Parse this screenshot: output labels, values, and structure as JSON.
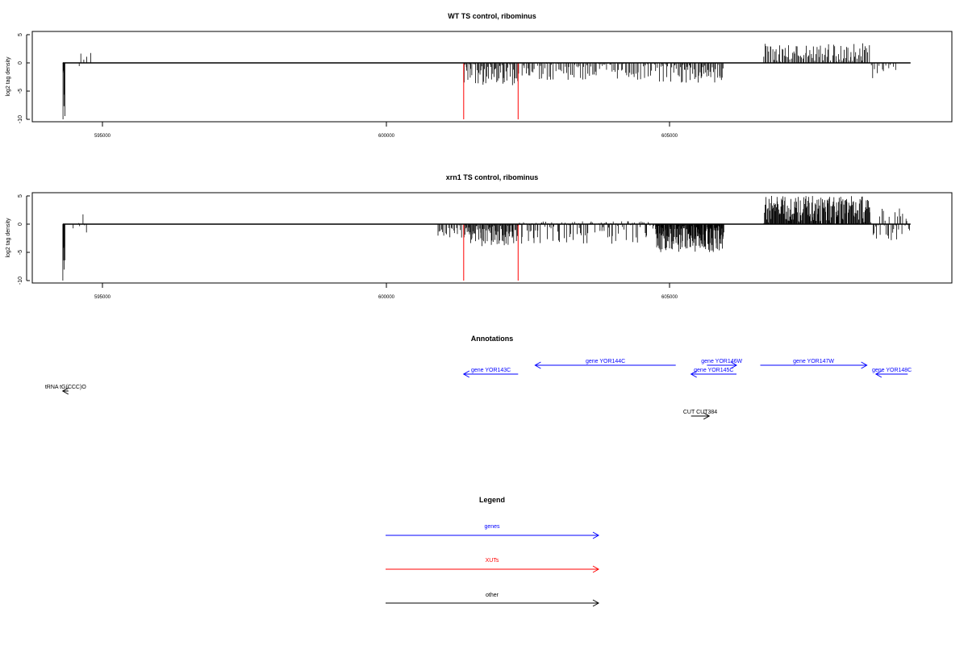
{
  "chart_data": [
    {
      "type": "bar",
      "title": "WT TS control, ribominus",
      "ylabel": "log2 tag density",
      "xlim": [
        594000,
        610000
      ],
      "ylim": [
        -10,
        5
      ],
      "xticks": [
        {
          "value": 595000,
          "label": "595000"
        },
        {
          "value": 600000,
          "label": "600000"
        },
        {
          "value": 605000,
          "label": "605000"
        }
      ],
      "yticks": [
        {
          "value": 5,
          "label": "5"
        },
        {
          "value": 0,
          "label": "0"
        },
        {
          "value": -5,
          "label": "-5"
        },
        {
          "value": -10,
          "label": "-10"
        }
      ],
      "baseline": {
        "start": 594300,
        "end": 609250
      },
      "xut_lines": [
        {
          "x": 601370,
          "value": -10
        },
        {
          "x": 602330,
          "value": -10
        }
      ],
      "signal_spans": [
        {
          "start": 594300,
          "end": 594340,
          "min": -10,
          "max": 0,
          "count": 6,
          "seed": 11
        },
        {
          "start": 594560,
          "end": 594820,
          "min": -2.5,
          "max": 2.5,
          "count": 5,
          "seed": 12
        },
        {
          "start": 601370,
          "end": 602330,
          "min": -4,
          "max": 0,
          "count": 55,
          "seed": 13
        },
        {
          "start": 602330,
          "end": 604750,
          "min": -3,
          "max": 0,
          "count": 95,
          "seed": 14
        },
        {
          "start": 604750,
          "end": 605960,
          "min": -3.5,
          "max": 0,
          "count": 70,
          "seed": 15
        },
        {
          "start": 606660,
          "end": 608530,
          "min": 0,
          "max": 3.5,
          "count": 90,
          "seed": 16
        },
        {
          "start": 608530,
          "end": 609000,
          "min": -3,
          "max": -0.3,
          "count": 12,
          "seed": 17
        }
      ]
    },
    {
      "type": "bar",
      "title": "xrn1 TS control, ribominus",
      "ylabel": "log2 tag density",
      "xlim": [
        594000,
        610000
      ],
      "ylim": [
        -10,
        5
      ],
      "xticks": [
        {
          "value": 595000,
          "label": "595000"
        },
        {
          "value": 600000,
          "label": "600000"
        },
        {
          "value": 605000,
          "label": "605000"
        }
      ],
      "yticks": [
        {
          "value": 5,
          "label": "5"
        },
        {
          "value": 0,
          "label": "0"
        },
        {
          "value": -5,
          "label": "-5"
        },
        {
          "value": -10,
          "label": "-10"
        }
      ],
      "baseline": {
        "start": 594300,
        "end": 609250
      },
      "xut_lines": [
        {
          "x": 601370,
          "value": -10
        },
        {
          "x": 602330,
          "value": -10
        }
      ],
      "signal_spans": [
        {
          "start": 594300,
          "end": 594340,
          "min": -10,
          "max": 0,
          "count": 6,
          "seed": 21
        },
        {
          "start": 594480,
          "end": 594790,
          "min": -2,
          "max": 2.3,
          "count": 8,
          "seed": 22
        },
        {
          "start": 600900,
          "end": 601370,
          "min": -2.5,
          "max": 0,
          "count": 20,
          "seed": 23
        },
        {
          "start": 601370,
          "end": 602330,
          "min": -4,
          "max": 0,
          "count": 80,
          "seed": 24
        },
        {
          "start": 602330,
          "end": 604750,
          "min": -3.5,
          "max": 0.5,
          "count": 140,
          "seed": 25
        },
        {
          "start": 604750,
          "end": 605960,
          "min": -5,
          "max": 0,
          "count": 160,
          "seed": 26
        },
        {
          "start": 606660,
          "end": 608530,
          "min": 0,
          "max": 5,
          "count": 180,
          "seed": 27
        },
        {
          "start": 608530,
          "end": 609250,
          "min": -3,
          "max": 3,
          "count": 40,
          "seed": 28
        }
      ]
    }
  ],
  "annotations": {
    "title": "Annotations",
    "features": [
      {
        "label": "gene YOR143C",
        "start": 601370,
        "end": 602330,
        "strand": "-",
        "color": "#0000ff"
      },
      {
        "label": "gene YOR144C",
        "start": 602630,
        "end": 605110,
        "strand": "-",
        "color": "#0000ff"
      },
      {
        "label": "gene YOR145C",
        "start": 605380,
        "end": 606180,
        "strand": "-",
        "color": "#0000ff"
      },
      {
        "label": "gene YOR146W",
        "start": 605660,
        "end": 606180,
        "strand": "+",
        "color": "#0000ff"
      },
      {
        "label": "gene YOR147W",
        "start": 606600,
        "end": 608480,
        "strand": "+",
        "color": "#0000ff"
      },
      {
        "label": "gene YOR148C",
        "start": 608640,
        "end": 609200,
        "strand": "-",
        "color": "#0000ff"
      },
      {
        "label": "tRNA tG(CCC)O",
        "start": 594300,
        "end": 594400,
        "strand": "-",
        "color": "#000000"
      },
      {
        "label": "CUT CUT384",
        "start": 605380,
        "end": 605700,
        "strand": "+",
        "color": "#000000"
      }
    ]
  },
  "legend": {
    "title": "Legend",
    "items": [
      {
        "label": "genes",
        "color": "#0000ff"
      },
      {
        "label": "XUTs",
        "color": "#ff0000"
      },
      {
        "label": "other",
        "color": "#000000"
      }
    ]
  }
}
